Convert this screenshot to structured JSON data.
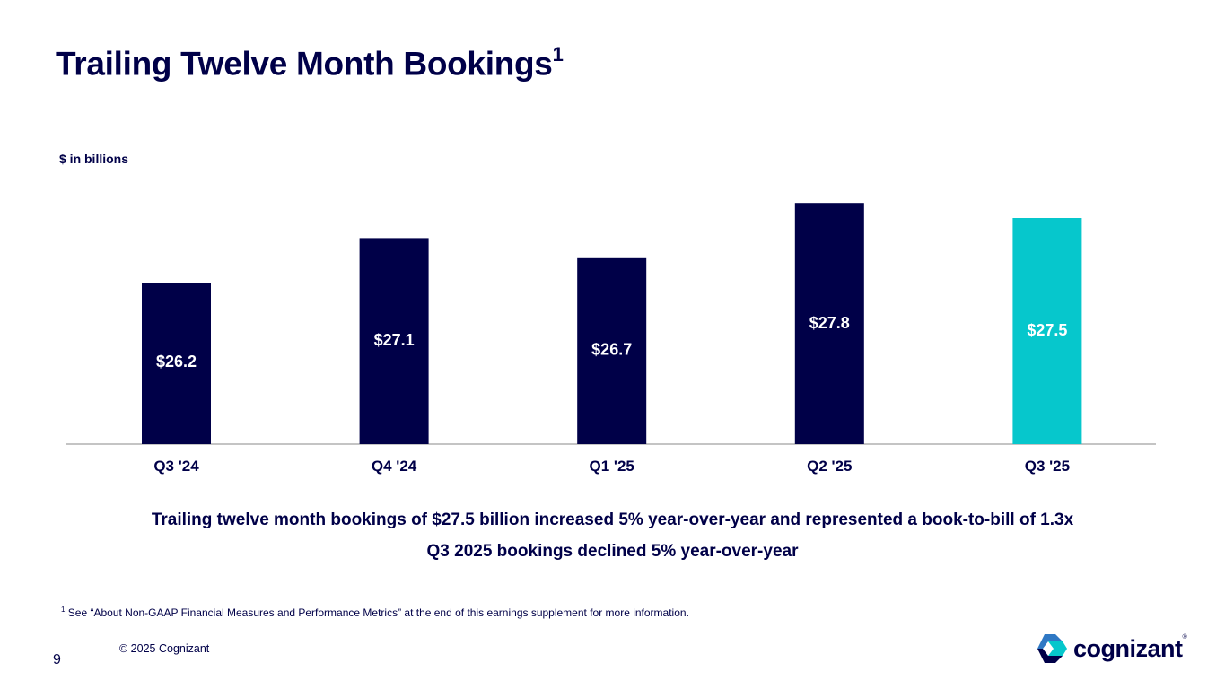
{
  "title": "Trailing Twelve Month Bookings",
  "title_superscript": "1",
  "units_label": "$ in billions",
  "chart_data": {
    "type": "bar",
    "categories": [
      "Q3 '24",
      "Q4 '24",
      "Q1 '25",
      "Q2 '25",
      "Q3 '25"
    ],
    "values": [
      26.2,
      27.1,
      26.7,
      27.8,
      27.5
    ],
    "value_labels": [
      "$26.2",
      "$27.1",
      "$26.7",
      "$27.8",
      "$27.5"
    ],
    "ylabel": "$ in billions",
    "ylim": [
      23.0,
      28.0
    ],
    "grid": false,
    "colors": {
      "default": "#000048",
      "highlight": "#06C7CC",
      "highlight_index": 4,
      "label_default": "#ffffff",
      "label_highlight": "#ffffff",
      "axis": "#b0b0b0"
    }
  },
  "highlights": [
    "Trailing twelve month bookings of $27.5 billion increased 5% year-over-year and represented a book-to-bill of 1.3x",
    "Q3 2025 bookings declined 5% year-over-year"
  ],
  "footnote": {
    "marker": "1",
    "text": " See “About Non-GAAP Financial Measures and Performance Metrics” at the end of this earnings supplement for more information."
  },
  "copyright": "© 2025 Cognizant",
  "page_number": "9",
  "logo": {
    "text": "cognizant",
    "mark": "®"
  }
}
